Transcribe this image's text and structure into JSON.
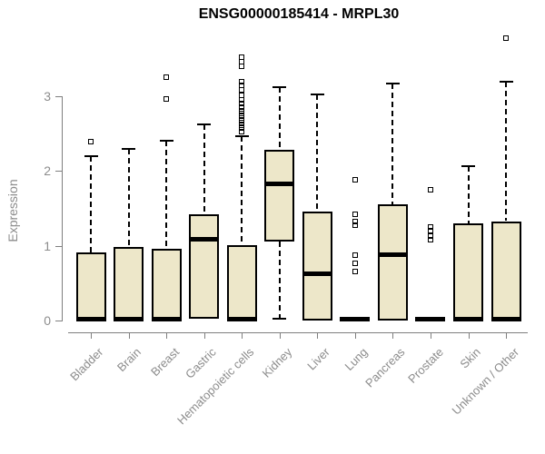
{
  "title": "ENSG00000185414 - MRPL30",
  "colors": {
    "box_fill": "#EDE7C9",
    "box_border": "#000000",
    "median": "#000000",
    "axis": "#7F7F7F",
    "tick_label": "#8C8C8C",
    "title": "#000000",
    "background": "#FFFFFF"
  },
  "chart_data": {
    "type": "boxplot",
    "title": "ENSG00000185414 - MRPL30",
    "xlabel": "",
    "ylabel": "Expression",
    "ylim": [
      0,
      3.9
    ],
    "yticks": [
      "0",
      "1",
      "2",
      "3"
    ],
    "grid": false,
    "legend": "none",
    "categories": [
      "Bladder",
      "Brain",
      "Breast",
      "Gastric",
      "Hematopoietic cells",
      "Kidney",
      "Liver",
      "Lung",
      "Pancreas",
      "Prostate",
      "Skin",
      "Unknown / Other"
    ],
    "series": [
      {
        "label": "Bladder",
        "q1": 0,
        "median": 0.02,
        "q3": 0.91,
        "whisker_low": 0,
        "whisker_high": 2.2,
        "outliers": [
          2.39
        ]
      },
      {
        "label": "Brain",
        "q1": 0,
        "median": 0.02,
        "q3": 0.98,
        "whisker_low": 0,
        "whisker_high": 2.29,
        "outliers": []
      },
      {
        "label": "Breast",
        "q1": 0,
        "median": 0.02,
        "q3": 0.96,
        "whisker_low": 0,
        "whisker_high": 2.41,
        "outliers": [
          2.96,
          3.26
        ]
      },
      {
        "label": "Gastric",
        "q1": 0.02,
        "median": 1.09,
        "q3": 1.42,
        "whisker_low": 0.02,
        "whisker_high": 2.62,
        "outliers": []
      },
      {
        "label": "Hematopoietic cells",
        "q1": 0,
        "median": 0.02,
        "q3": 1.01,
        "whisker_low": 0,
        "whisker_high": 2.47,
        "outliers": [
          2.53,
          2.57,
          2.61,
          2.65,
          2.69,
          2.73,
          2.77,
          2.81,
          2.85,
          2.9,
          2.95,
          3.01,
          3.08,
          3.14,
          3.2,
          3.4,
          3.46,
          3.52
        ]
      },
      {
        "label": "Kidney",
        "q1": 1.06,
        "median": 1.83,
        "q3": 2.28,
        "whisker_low": 0.02,
        "whisker_high": 3.12,
        "outliers": []
      },
      {
        "label": "Liver",
        "q1": 0,
        "median": 0.62,
        "q3": 1.46,
        "whisker_low": 0,
        "whisker_high": 3.03,
        "outliers": []
      },
      {
        "label": "Lung",
        "q1": 0,
        "median": 0.02,
        "q3": 0.03,
        "whisker_low": 0,
        "whisker_high": 0.03,
        "outliers": [
          0.65,
          0.76,
          0.87,
          1.28,
          1.33,
          1.42,
          1.88
        ]
      },
      {
        "label": "Pancreas",
        "q1": 0,
        "median": 0.88,
        "q3": 1.55,
        "whisker_low": 0,
        "whisker_high": 3.17,
        "outliers": []
      },
      {
        "label": "Prostate",
        "q1": 0,
        "median": 0.02,
        "q3": 0.03,
        "whisker_low": 0,
        "whisker_high": 0.03,
        "outliers": [
          1.08,
          1.13,
          1.2,
          1.25,
          1.75
        ]
      },
      {
        "label": "Skin",
        "q1": 0,
        "median": 0.02,
        "q3": 1.3,
        "whisker_low": 0,
        "whisker_high": 2.06,
        "outliers": []
      },
      {
        "label": "Unknown / Other",
        "q1": 0,
        "median": 0.02,
        "q3": 1.33,
        "whisker_low": 0,
        "whisker_high": 3.2,
        "outliers": [
          3.78
        ]
      }
    ]
  }
}
